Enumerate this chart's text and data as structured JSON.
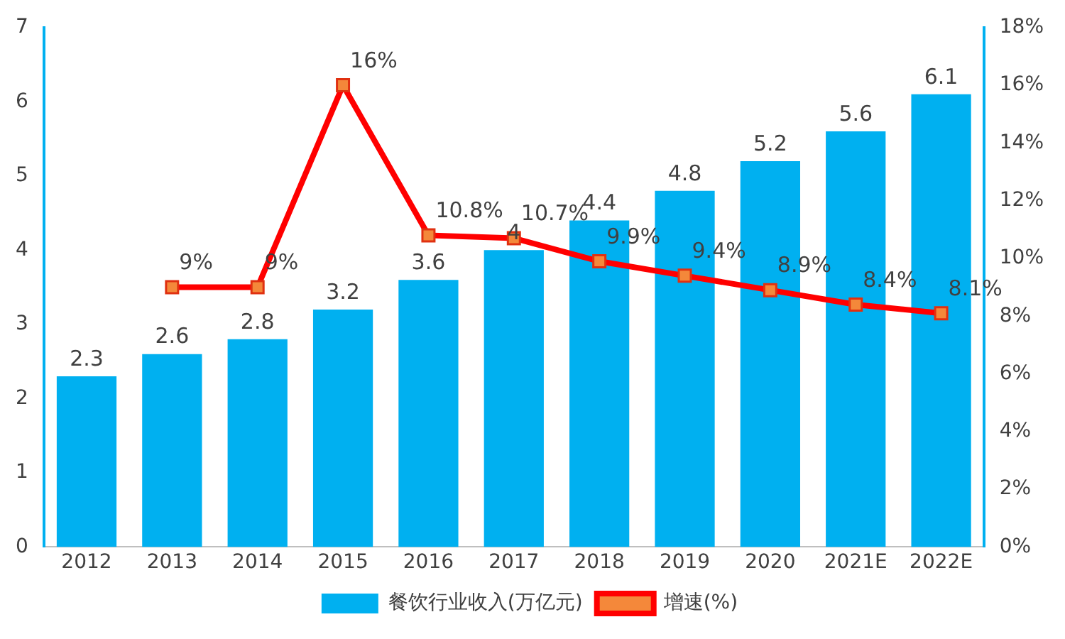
{
  "chart_data": {
    "type": "bar",
    "categories": [
      "2012",
      "2013",
      "2014",
      "2015",
      "2016",
      "2017",
      "2018",
      "2019",
      "2020",
      "2021E",
      "2022E"
    ],
    "series": [
      {
        "name": "餐饮行业收入(万亿元)",
        "type": "bar",
        "color": "#00b0f0",
        "values": [
          2.3,
          2.6,
          2.8,
          3.2,
          3.6,
          4,
          4.4,
          4.8,
          5.2,
          5.6,
          6.1
        ],
        "value_labels": [
          "2.3",
          "2.6",
          "2.8",
          "3.2",
          "3.6",
          "4",
          "4.4",
          "4.8",
          "5.2",
          "5.6",
          "6.1"
        ]
      },
      {
        "name": "增速(%)",
        "type": "line",
        "axis": "y2",
        "color": "#ff0000",
        "marker": "square",
        "values": [
          null,
          9,
          9,
          16,
          10.8,
          10.7,
          9.9,
          9.4,
          8.9,
          8.4,
          8.1
        ],
        "value_labels": [
          null,
          "9%",
          "9%",
          "16%",
          "10.8%",
          "10.7%",
          "9.9%",
          "9.4%",
          "8.9%",
          "8.4%",
          "8.1%"
        ]
      }
    ],
    "ylim": [
      0,
      7
    ],
    "yticks": [
      0,
      1,
      2,
      3,
      4,
      5,
      6,
      7
    ],
    "y2lim": [
      0,
      18
    ],
    "y2ticks": [
      {
        "value": 0,
        "label": "0%"
      },
      {
        "value": 2,
        "label": "2%"
      },
      {
        "value": 4,
        "label": "4%"
      },
      {
        "value": 6,
        "label": "6%"
      },
      {
        "value": 8,
        "label": "8%"
      },
      {
        "value": 10,
        "label": "10%"
      },
      {
        "value": 12,
        "label": "12%"
      },
      {
        "value": 14,
        "label": "14%"
      },
      {
        "value": 16,
        "label": "16%"
      },
      {
        "value": 18,
        "label": "18%"
      }
    ],
    "grid": false,
    "legend": "bottom"
  }
}
